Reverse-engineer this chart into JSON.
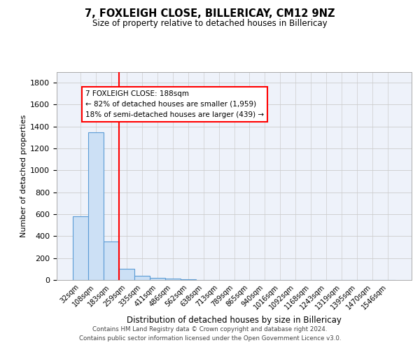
{
  "title": "7, FOXLEIGH CLOSE, BILLERICAY, CM12 9NZ",
  "subtitle": "Size of property relative to detached houses in Billericay",
  "xlabel": "Distribution of detached houses by size in Billericay",
  "ylabel": "Number of detached properties",
  "footnote1": "Contains HM Land Registry data © Crown copyright and database right 2024.",
  "footnote2": "Contains public sector information licensed under the Open Government Licence v3.0.",
  "annotation_title": "7 FOXLEIGH CLOSE: 188sqm",
  "annotation_line1": "← 82% of detached houses are smaller (1,959)",
  "annotation_line2": "18% of semi-detached houses are larger (439) →",
  "bar_labels": [
    "32sqm",
    "108sqm",
    "183sqm",
    "259sqm",
    "335sqm",
    "411sqm",
    "486sqm",
    "562sqm",
    "638sqm",
    "713sqm",
    "789sqm",
    "865sqm",
    "940sqm",
    "1016sqm",
    "1092sqm",
    "1168sqm",
    "1243sqm",
    "1319sqm",
    "1395sqm",
    "1470sqm",
    "1546sqm"
  ],
  "bar_values": [
    580,
    1350,
    350,
    100,
    40,
    20,
    10,
    5,
    3,
    2,
    2,
    2,
    1,
    1,
    1,
    1,
    1,
    1,
    1,
    1,
    1
  ],
  "bar_color": "#cce0f5",
  "bar_edge_color": "#5b9bd5",
  "vline_x_index": 2.5,
  "vline_color": "red",
  "annotation_box_color": "white",
  "annotation_box_edge": "red",
  "ylim": [
    0,
    1900
  ],
  "yticks": [
    0,
    200,
    400,
    600,
    800,
    1000,
    1200,
    1400,
    1600,
    1800
  ],
  "grid_color": "#cccccc",
  "bg_color": "#eef2fa"
}
